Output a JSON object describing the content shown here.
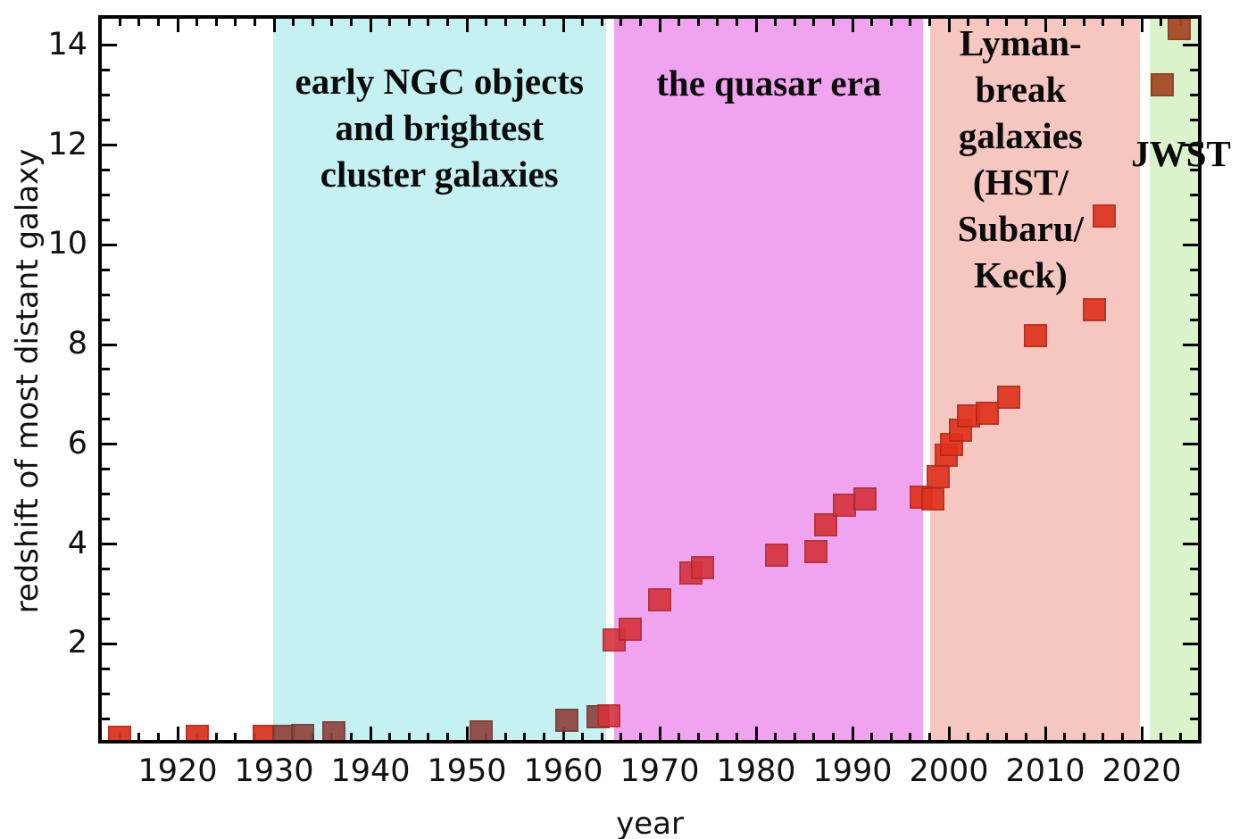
{
  "figure": {
    "description": "Record-holding highest measured galaxy redshift versus year of discovery, with shaded historical eras"
  },
  "chart_data": {
    "type": "scatter",
    "title": "",
    "xlabel": "year",
    "ylabel": "redshift of most distant galaxy",
    "xlim": [
      1911.8,
      2026.2
    ],
    "ylim": [
      0,
      14.6
    ],
    "grid": false,
    "x_major_ticks": [
      1920,
      1930,
      1940,
      1950,
      1960,
      1970,
      1980,
      1990,
      2000,
      2010,
      2020
    ],
    "x_minor_step": 2,
    "y_major_ticks": [
      2,
      4,
      6,
      8,
      10,
      12,
      14
    ],
    "y_minor_step": 0.5,
    "marker_shape": "square",
    "regions": [
      {
        "name": "pre-hubble",
        "label": "",
        "start": 1911.8,
        "end": 1929.9,
        "color": "#ffffff",
        "label_cy": 0,
        "label_dx": 0
      },
      {
        "name": "ngc-era",
        "label": "early NGC objects\nand brightest\ncluster galaxies",
        "start": 1929.9,
        "end": 1964.4,
        "color": "#c6f1f3",
        "label_cy": 143,
        "label_dx": 0
      },
      {
        "name": "quasar-era",
        "label": "the quasar era",
        "start": 1965.3,
        "end": 1997.35,
        "color": "#f0a4ef",
        "label_cy": 93,
        "label_dx": 0
      },
      {
        "name": "lyman-break-era",
        "label": "Lyman-\nbreak\ngalaxies\n(HST/\nSubaru/\nKeck)",
        "start": 1998.05,
        "end": 2019.8,
        "color": "#f6c6c1",
        "label_cy": 178,
        "label_dx": -16
      },
      {
        "name": "jwst-era",
        "label": "JWST",
        "start": 2020.85,
        "end": 2026.2,
        "color": "#daf3cb",
        "label_cy": 172,
        "label_dx": 6
      }
    ],
    "series": [
      {
        "name": "early spiral nebula records",
        "color": "#dc3522",
        "opacity": 0.95,
        "points": [
          [
            1914.0,
            0.13
          ],
          [
            1922.0,
            0.14
          ],
          [
            1929.0,
            0.14
          ]
        ]
      },
      {
        "name": "brightest cluster galaxy records",
        "color": "#8f463f",
        "opacity": 0.93,
        "points": [
          [
            1931.0,
            0.15
          ],
          [
            1933.0,
            0.17
          ],
          [
            1936.2,
            0.21
          ],
          [
            1951.5,
            0.23
          ],
          [
            1960.4,
            0.46
          ],
          [
            1963.6,
            0.53
          ]
        ]
      },
      {
        "name": "quasar records",
        "color": "#d7323c",
        "opacity": 0.9,
        "points": [
          [
            1964.7,
            0.55
          ],
          [
            1965.3,
            2.07
          ],
          [
            1966.9,
            2.29
          ],
          [
            1970.0,
            2.88
          ],
          [
            1973.2,
            3.42
          ],
          [
            1974.4,
            3.53
          ],
          [
            1982.1,
            3.78
          ],
          [
            1986.2,
            3.85
          ],
          [
            1987.2,
            4.38
          ],
          [
            1989.2,
            4.78
          ],
          [
            1991.3,
            4.9
          ]
        ]
      },
      {
        "name": "lyman-break galaxy records",
        "color": "#e0331e",
        "opacity": 0.92,
        "points": [
          [
            1997.1,
            4.94
          ],
          [
            1998.3,
            4.9
          ],
          [
            1998.9,
            5.35
          ],
          [
            1999.7,
            5.78
          ],
          [
            2000.3,
            6.0
          ],
          [
            2001.2,
            6.28
          ],
          [
            2002.0,
            6.56
          ],
          [
            2004.0,
            6.62
          ],
          [
            2006.2,
            6.95
          ],
          [
            2009.0,
            8.18
          ],
          [
            2015.1,
            8.7
          ],
          [
            2016.1,
            10.58
          ]
        ]
      },
      {
        "name": "jwst galaxy records",
        "color": "#a64a26",
        "opacity": 0.95,
        "points": [
          [
            2022.1,
            13.2
          ],
          [
            2023.9,
            14.33
          ]
        ]
      }
    ]
  }
}
